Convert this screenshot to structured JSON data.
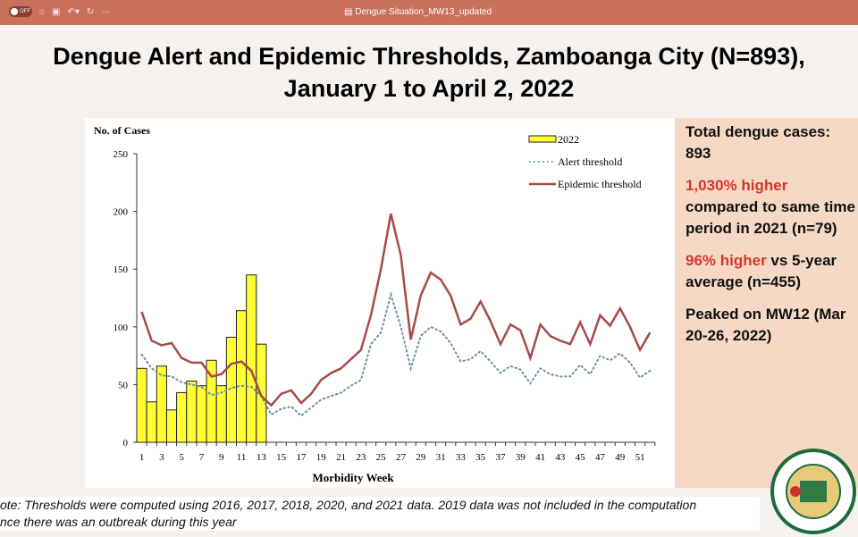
{
  "window": {
    "toggle_label": "OFF",
    "doc_title": "Dengue Situation_MW13_updated"
  },
  "slide": {
    "title_line1": "Dengue Alert and Epidemic Thresholds, Zamboanga City (N=893),",
    "title_line2": "January 1 to April 2, 2022",
    "side": {
      "p1": "Total dengue cases: 893",
      "p2_red": "1,030% higher",
      "p2": "compared to same time period in 2021 (n=79)",
      "p3_red": "96% higher",
      "p3": " vs 5-year average (n=455)",
      "p4": "Peaked on MW12 (Mar 20-26, 2022)"
    },
    "note_line1": "ote: Thresholds were computed using 2016, 2017, 2018, 2020, and 2021 data. 2019 data was not included in the computation",
    "note_line2": "nce there was an outbreak during this year",
    "seal_text": "CITY OF ZAMBOANGA OFFICIAL SEAL"
  },
  "chart_data": {
    "type": "bar+line",
    "ylabel": "No. of Cases",
    "xlabel": "Morbidity Week",
    "ylim": [
      0,
      250
    ],
    "yticks": [
      0,
      50,
      100,
      150,
      200,
      250
    ],
    "xticks": [
      1,
      3,
      5,
      7,
      9,
      11,
      13,
      15,
      17,
      19,
      21,
      23,
      25,
      27,
      29,
      31,
      33,
      35,
      37,
      39,
      41,
      43,
      45,
      47,
      49,
      51
    ],
    "legend_position": "top-right",
    "colors": {
      "bars": "#ffff33",
      "alert": "#6f8fa0",
      "epidemic": "#a84a4a"
    },
    "series": [
      {
        "name": "2022",
        "type": "bar",
        "weeks": [
          1,
          2,
          3,
          4,
          5,
          6,
          7,
          8,
          9,
          10,
          11,
          12,
          13
        ],
        "values": [
          64,
          35,
          66,
          28,
          43,
          53,
          49,
          71,
          49,
          91,
          114,
          145,
          85
        ]
      },
      {
        "name": "Alert threshold",
        "type": "dotted-line",
        "values": [
          76,
          64,
          58,
          57,
          52,
          50,
          48,
          41,
          43,
          47,
          49,
          48,
          40,
          24,
          29,
          31,
          23,
          30,
          37,
          40,
          43,
          49,
          54,
          85,
          95,
          128,
          100,
          64,
          92,
          100,
          96,
          86,
          70,
          72,
          79,
          70,
          60,
          66,
          63,
          51,
          64,
          59,
          57,
          57,
          67,
          59,
          75,
          71,
          77,
          69,
          56,
          62
        ]
      },
      {
        "name": "Epidemic threshold",
        "type": "line",
        "values": [
          113,
          88,
          84,
          86,
          73,
          69,
          69,
          57,
          59,
          68,
          70,
          62,
          40,
          32,
          42,
          45,
          34,
          42,
          54,
          60,
          64,
          72,
          80,
          110,
          150,
          198,
          162,
          89,
          127,
          147,
          141,
          127,
          102,
          107,
          122,
          105,
          85,
          102,
          97,
          73,
          102,
          92,
          88,
          85,
          104,
          85,
          110,
          101,
          116,
          100,
          80,
          95
        ]
      }
    ]
  }
}
